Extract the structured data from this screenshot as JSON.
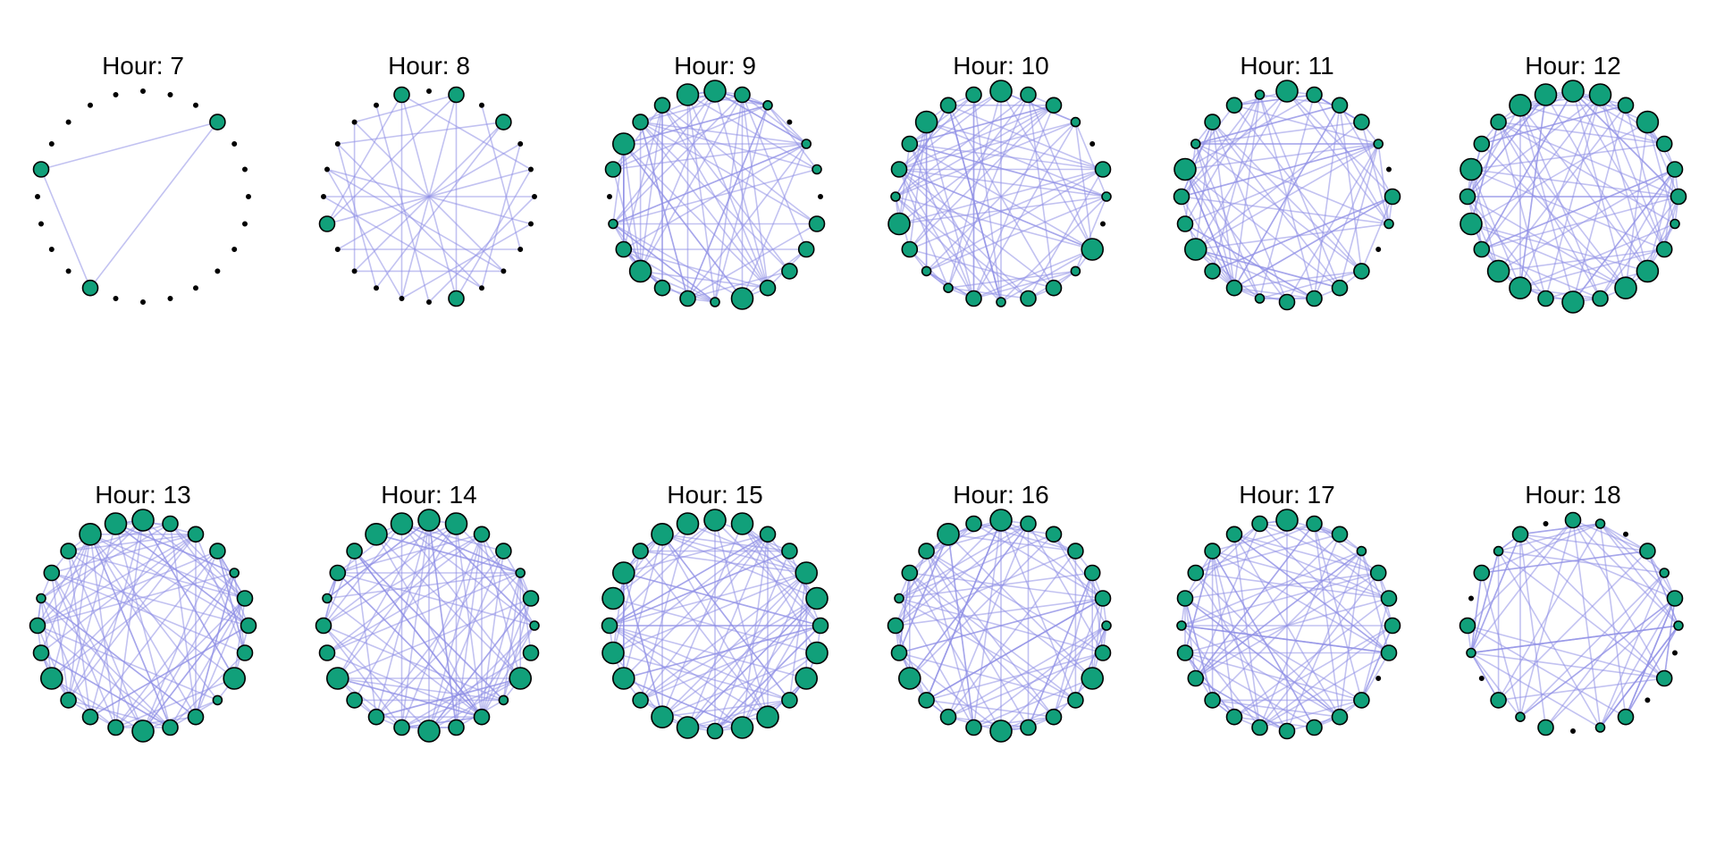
{
  "edge_color": "#8f8fe6",
  "node_color": "#11a07a",
  "outline_color": "#000000",
  "panels": [
    {
      "title": "Hour: 7",
      "nodes": [
        0,
        0,
        0,
        2,
        0,
        0,
        0,
        0,
        0,
        0,
        0,
        0,
        0,
        0,
        2,
        0,
        0,
        0,
        0,
        2,
        0,
        0,
        0,
        0
      ],
      "edges": [
        [
          3,
          14
        ],
        [
          3,
          19
        ],
        [
          14,
          19
        ]
      ]
    },
    {
      "title": "Hour: 8",
      "nodes": [
        0,
        2,
        0,
        2,
        0,
        0,
        0,
        0,
        0,
        0,
        0,
        2,
        0,
        0,
        0,
        0,
        0,
        2,
        0,
        0,
        0,
        0,
        0,
        2
      ],
      "edges": [
        [
          1,
          11
        ],
        [
          1,
          17
        ],
        [
          3,
          14
        ],
        [
          3,
          20
        ],
        [
          5,
          17
        ],
        [
          5,
          23
        ],
        [
          7,
          19
        ],
        [
          7,
          13
        ],
        [
          9,
          21
        ],
        [
          9,
          15
        ],
        [
          11,
          23
        ],
        [
          11,
          5
        ],
        [
          13,
          1
        ],
        [
          13,
          19
        ],
        [
          15,
          3
        ],
        [
          15,
          21
        ],
        [
          17,
          23
        ],
        [
          19,
          9
        ],
        [
          21,
          1
        ],
        [
          23,
          13
        ],
        [
          2,
          8
        ],
        [
          4,
          10
        ],
        [
          6,
          12
        ],
        [
          8,
          16
        ],
        [
          10,
          18
        ],
        [
          12,
          22
        ],
        [
          14,
          20
        ],
        [
          16,
          4
        ],
        [
          18,
          6
        ],
        [
          20,
          10
        ]
      ]
    },
    {
      "title": "Hour: 9",
      "nodes": [
        3,
        2,
        1,
        0,
        1,
        1,
        0,
        2,
        2,
        2,
        2,
        3,
        1,
        2,
        2,
        3,
        2,
        1,
        0,
        2,
        3,
        2,
        2,
        3
      ],
      "edges": []
    },
    {
      "title": "Hour: 10",
      "nodes": [
        3,
        2,
        2,
        1,
        0,
        2,
        1,
        0,
        3,
        1,
        2,
        2,
        1,
        2,
        1,
        1,
        2,
        3,
        1,
        2,
        2,
        3,
        2,
        2
      ],
      "edges": []
    },
    {
      "title": "Hour: 11",
      "nodes": [
        3,
        2,
        2,
        2,
        1,
        0,
        2,
        1,
        0,
        2,
        2,
        2,
        2,
        1,
        2,
        2,
        3,
        2,
        2,
        3,
        1,
        2,
        2,
        1
      ],
      "edges": []
    },
    {
      "title": "Hour: 12",
      "nodes": [
        3,
        3,
        2,
        3,
        2,
        2,
        2,
        1,
        2,
        3,
        3,
        2,
        3,
        2,
        3,
        3,
        2,
        3,
        2,
        3,
        2,
        2,
        3,
        3
      ],
      "edges": []
    },
    {
      "title": "Hour: 13",
      "nodes": [
        3,
        2,
        2,
        2,
        1,
        2,
        2,
        2,
        3,
        1,
        2,
        2,
        3,
        2,
        2,
        2,
        3,
        2,
        2,
        1,
        2,
        2,
        3,
        3
      ],
      "edges": []
    },
    {
      "title": "Hour: 14",
      "nodes": [
        3,
        3,
        2,
        2,
        1,
        2,
        1,
        2,
        3,
        1,
        2,
        2,
        3,
        2,
        2,
        2,
        3,
        2,
        2,
        1,
        2,
        2,
        3,
        3
      ],
      "edges": []
    },
    {
      "title": "Hour: 15",
      "nodes": [
        3,
        3,
        2,
        2,
        3,
        3,
        2,
        3,
        3,
        2,
        3,
        3,
        2,
        3,
        3,
        2,
        3,
        3,
        2,
        3,
        3,
        2,
        3,
        3
      ],
      "edges": []
    },
    {
      "title": "Hour: 16",
      "nodes": [
        3,
        2,
        2,
        2,
        2,
        2,
        1,
        2,
        3,
        2,
        2,
        2,
        3,
        2,
        2,
        2,
        3,
        2,
        2,
        1,
        2,
        2,
        3,
        2
      ],
      "edges": []
    },
    {
      "title": "Hour: 17",
      "nodes": [
        3,
        2,
        2,
        1,
        2,
        2,
        2,
        2,
        0,
        2,
        2,
        2,
        2,
        2,
        2,
        2,
        2,
        2,
        1,
        2,
        2,
        2,
        2,
        2
      ],
      "edges": []
    },
    {
      "title": "Hour: 18",
      "nodes": [
        2,
        1,
        0,
        2,
        1,
        2,
        1,
        0,
        2,
        0,
        2,
        1,
        0,
        2,
        1,
        2,
        0,
        1,
        2,
        0,
        2,
        1,
        2,
        0
      ],
      "edges": []
    }
  ]
}
